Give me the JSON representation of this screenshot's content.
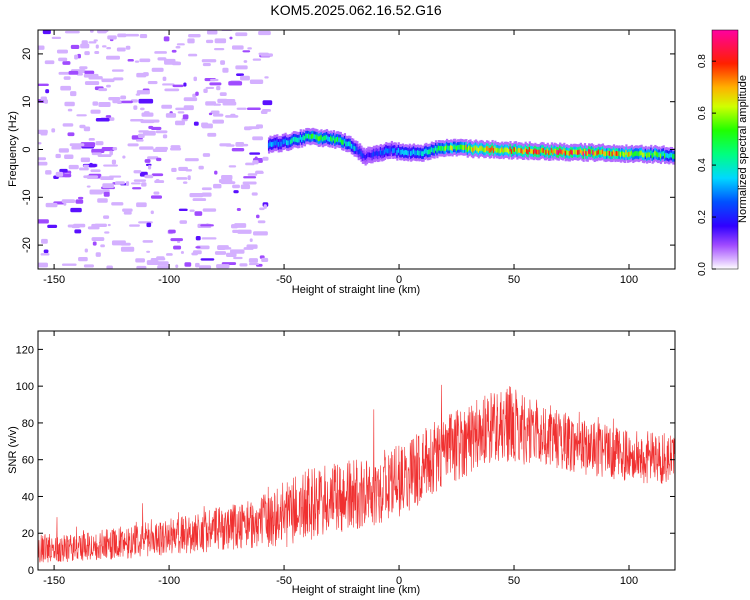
{
  "title": "KOM5.2025.062.16.52.G16",
  "chart_data": [
    {
      "type": "heatmap",
      "title": "KOM5.2025.062.16.52.G16",
      "xlabel": "Height of straight line (km)",
      "ylabel": "Frequency (Hz)",
      "xlim": [
        -157,
        120
      ],
      "ylim": [
        -25,
        25
      ],
      "x_ticks": [
        -150,
        -100,
        -50,
        0,
        50,
        100
      ],
      "y_ticks": [
        -20,
        -10,
        0,
        10,
        20
      ],
      "colorbar": {
        "label": "Normalized spectral amplitude",
        "range": [
          0.0,
          0.92
        ],
        "ticks": [
          0.0,
          0.2,
          0.4,
          0.6,
          0.8
        ],
        "colormap": [
          "#ffffff",
          "#b36bff",
          "#5a00ff",
          "#0000ff",
          "#00d8ff",
          "#00ff20",
          "#ffff00",
          "#ff6600",
          "#ff0000",
          "#ff00a0"
        ]
      },
      "noise_region_x": [
        -157,
        -57
      ],
      "ridge": {
        "x": [
          -57,
          -50,
          -45,
          -40,
          -35,
          -30,
          -25,
          -20,
          -15,
          -10,
          -5,
          0,
          10,
          20,
          30,
          40,
          50,
          60,
          70,
          80,
          90,
          100,
          110,
          120
        ],
        "freq": [
          1.0,
          1.5,
          2.0,
          2.8,
          2.5,
          2.2,
          1.8,
          0.5,
          -1.5,
          -1.0,
          0.0,
          -0.5,
          -0.6,
          0.4,
          0.2,
          0.0,
          -0.2,
          -0.3,
          -0.5,
          -0.6,
          -0.7,
          -0.9,
          -1.0,
          -1.2
        ],
        "amplitude": [
          0.35,
          0.4,
          0.45,
          0.5,
          0.55,
          0.5,
          0.5,
          0.4,
          0.2,
          0.25,
          0.3,
          0.35,
          0.4,
          0.6,
          0.7,
          0.75,
          0.8,
          0.85,
          0.9,
          0.88,
          0.8,
          0.7,
          0.6,
          0.5
        ]
      }
    },
    {
      "type": "line",
      "xlabel": "Height of straight line (km)",
      "ylabel": "SNR (v/v)",
      "xlim": [
        -157,
        120
      ],
      "ylim": [
        0,
        130
      ],
      "x_ticks": [
        -150,
        -100,
        -50,
        0,
        50,
        100
      ],
      "y_ticks": [
        0,
        20,
        40,
        60,
        80,
        100,
        120
      ],
      "color": "#f03030",
      "series": [
        {
          "x": [
            -157,
            -140,
            -120,
            -100,
            -80,
            -60,
            -50,
            -40,
            -20,
            0,
            20,
            40,
            45,
            60,
            80,
            100,
            120
          ],
          "mean": [
            12,
            12,
            15,
            18,
            22,
            26,
            30,
            35,
            40,
            48,
            65,
            78,
            80,
            75,
            67,
            62,
            60
          ],
          "spread": [
            8,
            8,
            9,
            10,
            12,
            14,
            18,
            20,
            20,
            20,
            20,
            20,
            22,
            18,
            15,
            14,
            15
          ]
        }
      ]
    }
  ]
}
